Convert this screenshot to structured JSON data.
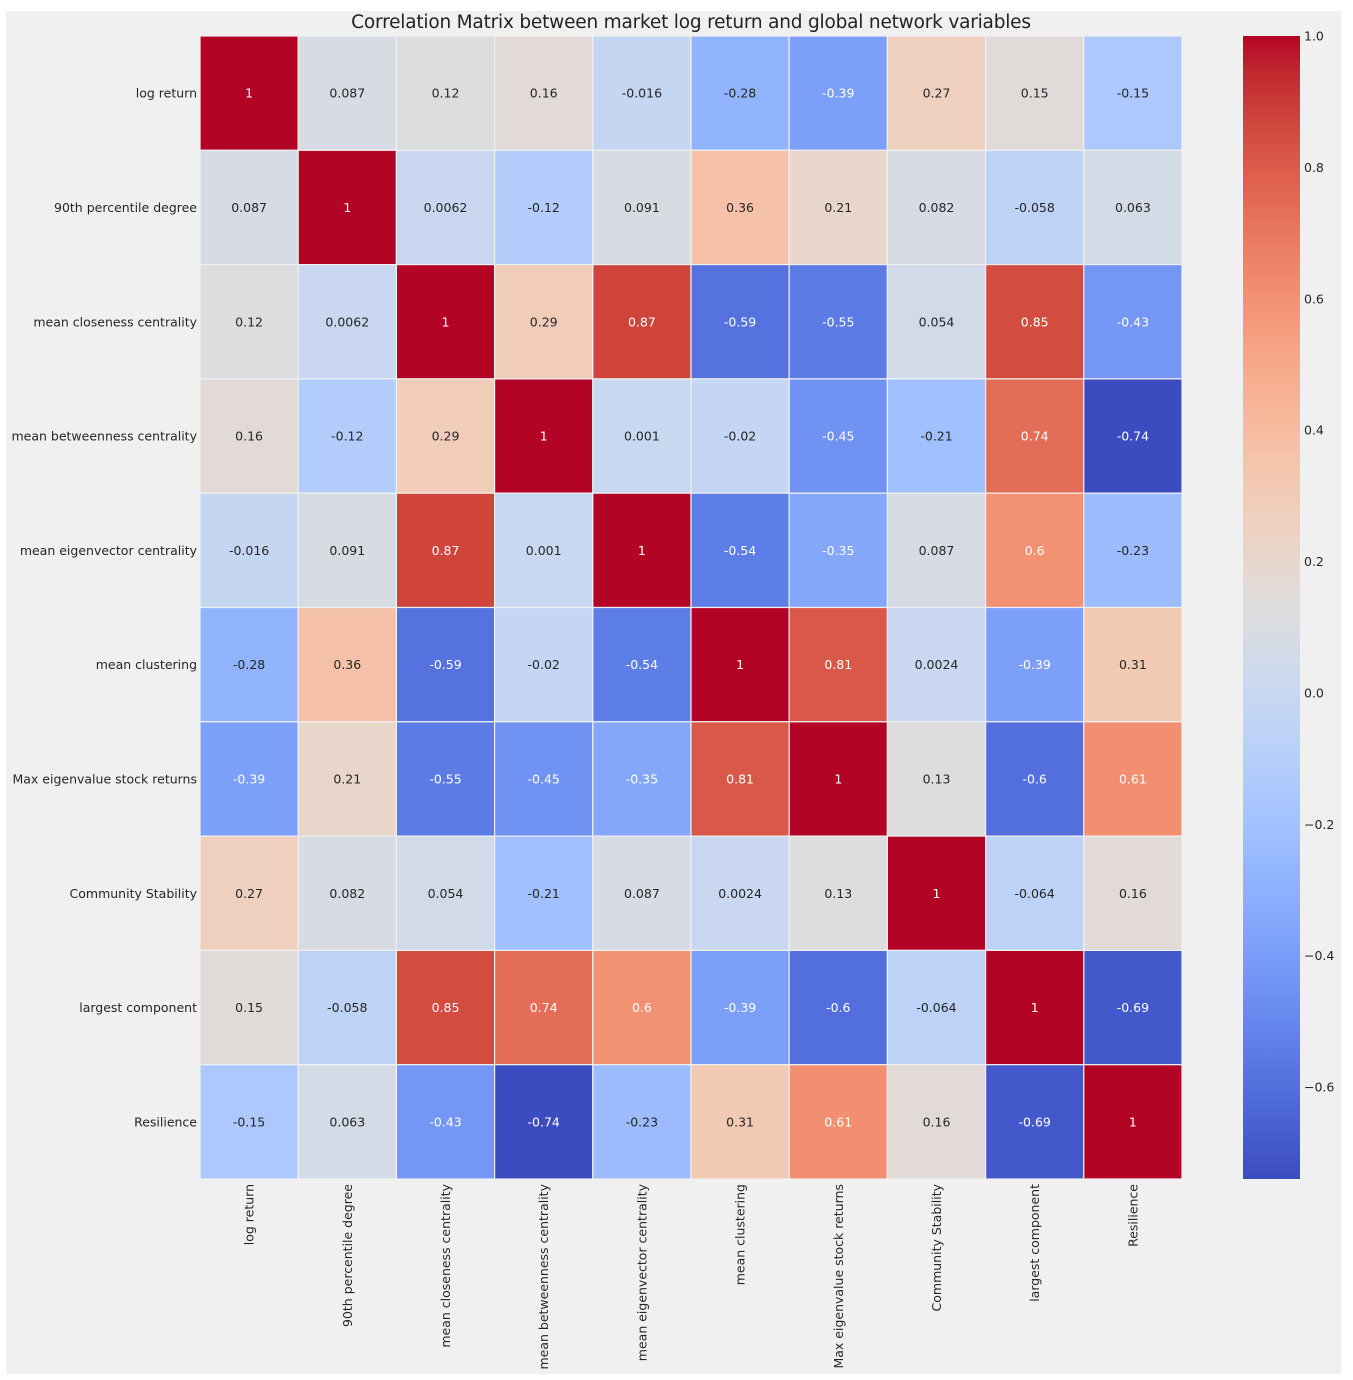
{
  "chart_data": {
    "type": "heatmap",
    "title": "Correlation Matrix between market log return and global network variables",
    "xlabel": "",
    "ylabel": "",
    "colormap": "coolwarm",
    "annotated": true,
    "labels": [
      "log return",
      "90th percentile degree",
      "mean closeness centrality",
      "mean betweenness centrality",
      "mean eigenvector centrality",
      "mean clustering",
      "Max eigenvalue stock returns",
      "Community Stability",
      "largest component",
      "Resilience"
    ],
    "values": [
      [
        1,
        0.087,
        0.12,
        0.16,
        -0.016,
        -0.28,
        -0.39,
        0.27,
        0.15,
        -0.15
      ],
      [
        0.087,
        1,
        0.0062,
        -0.12,
        0.091,
        0.36,
        0.21,
        0.082,
        -0.058,
        0.063
      ],
      [
        0.12,
        0.0062,
        1,
        0.29,
        0.87,
        -0.59,
        -0.55,
        0.054,
        0.85,
        -0.43
      ],
      [
        0.16,
        -0.12,
        0.29,
        1,
        0.001,
        -0.02,
        -0.45,
        -0.21,
        0.74,
        -0.74
      ],
      [
        -0.016,
        0.091,
        0.87,
        0.001,
        1,
        -0.54,
        -0.35,
        0.087,
        0.6,
        -0.23
      ],
      [
        -0.28,
        0.36,
        -0.59,
        -0.02,
        -0.54,
        1,
        0.81,
        0.0024,
        -0.39,
        0.31
      ],
      [
        -0.39,
        0.21,
        -0.55,
        -0.45,
        -0.35,
        0.81,
        1,
        0.13,
        -0.6,
        0.61
      ],
      [
        0.27,
        0.082,
        0.054,
        -0.21,
        0.087,
        0.0024,
        0.13,
        1,
        -0.064,
        0.16
      ],
      [
        0.15,
        -0.058,
        0.85,
        0.74,
        0.6,
        -0.39,
        -0.6,
        -0.064,
        1,
        -0.69
      ],
      [
        -0.15,
        0.063,
        -0.43,
        -0.74,
        -0.23,
        0.31,
        0.61,
        0.16,
        -0.69,
        1
      ]
    ],
    "color_range": [
      -0.74,
      1.0
    ],
    "colorbar": {
      "ticks": [
        1.0,
        0.8,
        0.6,
        0.4,
        0.2,
        0.0,
        -0.2,
        -0.4,
        -0.6
      ],
      "tick_labels": [
        "1.0",
        "0.8",
        "0.6",
        "0.4",
        "0.2",
        "0.0",
        "−0.2",
        "−0.4",
        "−0.6"
      ]
    },
    "grid": false
  }
}
